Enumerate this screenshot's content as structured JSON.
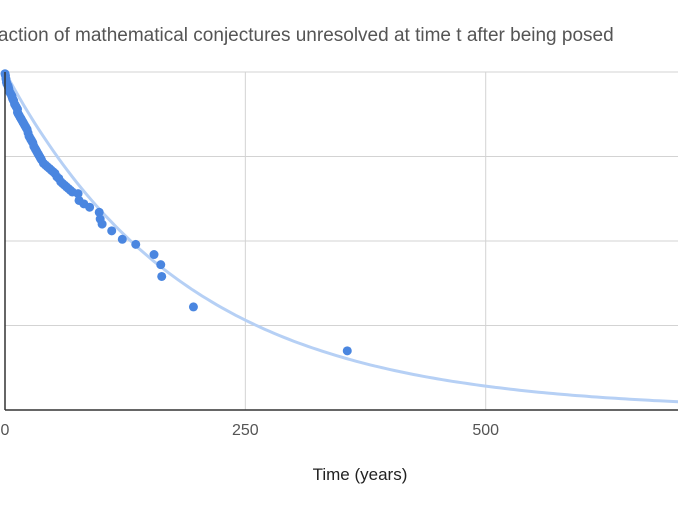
{
  "chart_data": {
    "type": "scatter",
    "title": "Fraction of mathematical conjectures unresolved at time t after being posed",
    "xlabel": "Time (years)",
    "ylabel": "",
    "xlim": [
      0,
      700
    ],
    "ylim": [
      0,
      1
    ],
    "x_ticks": [
      0,
      250,
      500
    ],
    "x_tick_labels": [
      "0",
      "250",
      "500"
    ],
    "y_ticks": [
      0,
      0.25,
      0.5,
      0.75,
      1
    ],
    "grid": true,
    "legend": "none",
    "point_color": "#4a86e0",
    "trendline_color": "#b6d0f5",
    "trendline": {
      "type": "exponential",
      "decay_rate": 0.0053
    },
    "series": [
      {
        "x": [
          0,
          0.5,
          1,
          1.5,
          2,
          3,
          3.5,
          4,
          5,
          6,
          7,
          7.5,
          8,
          9,
          10,
          11,
          12,
          13,
          13,
          14,
          15,
          16,
          17,
          18,
          19,
          20,
          21,
          22,
          23,
          24,
          25,
          26,
          27,
          28,
          29,
          30,
          31,
          32,
          33,
          34,
          35,
          36,
          37,
          38,
          40,
          42,
          44,
          46,
          48,
          50,
          52,
          54,
          56,
          58,
          60,
          62,
          64,
          66,
          68,
          70,
          76,
          77,
          82,
          88,
          98,
          99,
          101,
          111,
          122,
          136,
          155,
          162,
          163,
          196,
          356
        ],
        "y": [
          0.995,
          0.99,
          0.98,
          0.97,
          0.965,
          0.96,
          0.955,
          0.95,
          0.94,
          0.935,
          0.93,
          0.925,
          0.92,
          0.915,
          0.905,
          0.9,
          0.895,
          0.89,
          0.88,
          0.875,
          0.87,
          0.865,
          0.86,
          0.855,
          0.85,
          0.845,
          0.84,
          0.835,
          0.83,
          0.82,
          0.81,
          0.805,
          0.8,
          0.795,
          0.79,
          0.78,
          0.775,
          0.77,
          0.765,
          0.76,
          0.755,
          0.75,
          0.745,
          0.74,
          0.73,
          0.725,
          0.72,
          0.715,
          0.71,
          0.705,
          0.7,
          0.69,
          0.685,
          0.675,
          0.67,
          0.665,
          0.66,
          0.655,
          0.65,
          0.645,
          0.64,
          0.62,
          0.61,
          0.6,
          0.585,
          0.565,
          0.55,
          0.53,
          0.505,
          0.49,
          0.46,
          0.43,
          0.395,
          0.305,
          0.175
        ]
      }
    ]
  }
}
